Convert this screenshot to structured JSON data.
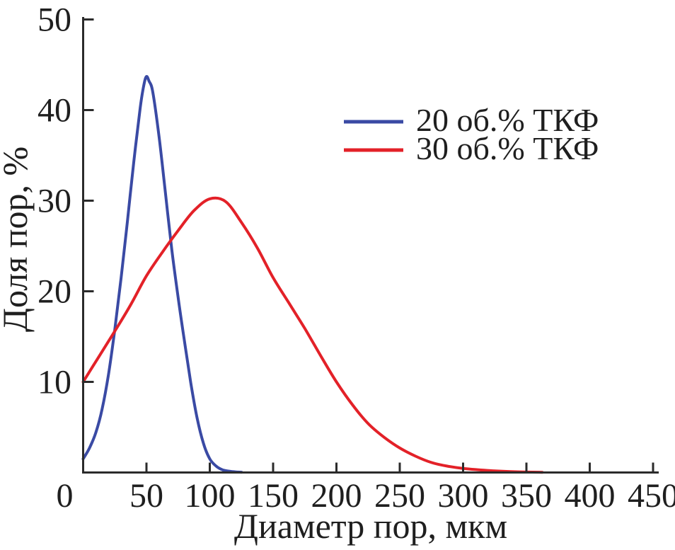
{
  "chart_data": {
    "type": "line",
    "title": "",
    "xlabel": "Диаметр пор, мкм",
    "ylabel": "Доля пор, %",
    "xlim": [
      0,
      450
    ],
    "ylim": [
      0,
      50
    ],
    "x_ticks": [
      0,
      50,
      100,
      150,
      200,
      250,
      300,
      350,
      400,
      450
    ],
    "y_ticks": [
      10,
      20,
      30,
      40,
      50
    ],
    "grid": false,
    "legend_position": "upper-right-inside",
    "legend_frame": false,
    "background_color": "#ffffff",
    "axis_color": "#2b2b2b",
    "text_color": "#1f1f1f",
    "series": [
      {
        "name": "20 об.% ТКФ",
        "color": "#3A4AA4",
        "points": [
          [
            0,
            1.5
          ],
          [
            5,
            2.7
          ],
          [
            10,
            4.4
          ],
          [
            15,
            7.0
          ],
          [
            20,
            10.8
          ],
          [
            25,
            15.8
          ],
          [
            30,
            21.5
          ],
          [
            35,
            27.8
          ],
          [
            40,
            34.3
          ],
          [
            45,
            40.2
          ],
          [
            48,
            42.8
          ],
          [
            50,
            43.7
          ],
          [
            52,
            43.2
          ],
          [
            55,
            42.0
          ],
          [
            60,
            37.0
          ],
          [
            65,
            30.8
          ],
          [
            70,
            24.6
          ],
          [
            75,
            19.3
          ],
          [
            80,
            14.5
          ],
          [
            85,
            9.9
          ],
          [
            90,
            6.0
          ],
          [
            95,
            3.2
          ],
          [
            100,
            1.5
          ],
          [
            105,
            0.7
          ],
          [
            110,
            0.3
          ],
          [
            115,
            0.15
          ],
          [
            120,
            0.07
          ],
          [
            125,
            0.03
          ]
        ]
      },
      {
        "name": "30 об.% ТКФ",
        "color": "#E32128",
        "points": [
          [
            0,
            10.0
          ],
          [
            12.5,
            12.8
          ],
          [
            25,
            15.6
          ],
          [
            37.5,
            18.5
          ],
          [
            50,
            21.7
          ],
          [
            62.5,
            24.3
          ],
          [
            75,
            26.7
          ],
          [
            87.5,
            28.9
          ],
          [
            100,
            30.2
          ],
          [
            112.5,
            29.9
          ],
          [
            125,
            27.6
          ],
          [
            137.5,
            24.8
          ],
          [
            150,
            21.5
          ],
          [
            162.5,
            18.7
          ],
          [
            175,
            15.9
          ],
          [
            187.5,
            12.9
          ],
          [
            200,
            10.0
          ],
          [
            212.5,
            7.5
          ],
          [
            225,
            5.4
          ],
          [
            237.5,
            3.9
          ],
          [
            250,
            2.7
          ],
          [
            262.5,
            1.8
          ],
          [
            275,
            1.1
          ],
          [
            287.5,
            0.7
          ],
          [
            300,
            0.45
          ],
          [
            312.5,
            0.3
          ],
          [
            325,
            0.18
          ],
          [
            337.5,
            0.1
          ],
          [
            350,
            0.05
          ],
          [
            362.5,
            0.02
          ]
        ]
      }
    ]
  }
}
